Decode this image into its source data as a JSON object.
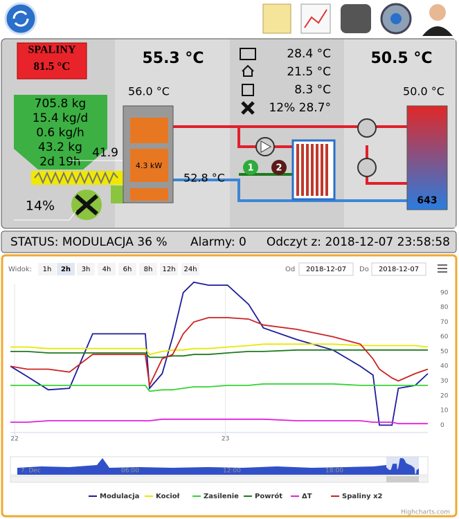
{
  "boiler": {
    "spaliny_label": "SPALINY",
    "spaliny_value": "81.5 °C",
    "fuel": [
      "705.8 kg",
      "15.4 kg/d",
      "0.6 kg/h",
      "43.2 kg",
      "2d 19h"
    ],
    "feeder": "41.9",
    "fan": "14%",
    "boiler_temp": "55.3 °C",
    "top_temp": "56.0 °C",
    "power": "4.3 kW",
    "return_temp": "52.8 °C"
  },
  "mixer": {
    "readings": [
      "28.4 °C",
      "21.5 °C",
      "8.3 °C",
      "12% 28.7°"
    ],
    "pumps": [
      "1",
      "2"
    ]
  },
  "tank": {
    "temp": "50.5 °C",
    "top": "50.0 °C",
    "bottom": "643"
  },
  "status": {
    "status": "STATUS: MODULACJA 36 %",
    "alarms": "Alarmy: 0",
    "read": "Odczyt z: 2018-12-07 23:58:58"
  },
  "controls": {
    "view_label": "Widok:",
    "ranges": [
      "1h",
      "2h",
      "3h",
      "4h",
      "6h",
      "8h",
      "12h",
      "24h"
    ],
    "from_label": "Od",
    "from": "2018-12-07",
    "to_label": "Do",
    "to": "2018-12-07"
  },
  "chart_data": {
    "type": "line",
    "x": [
      21.98,
      22.06,
      22.16,
      22.26,
      22.37,
      22.62,
      22.64,
      22.7,
      22.75,
      22.8,
      22.85,
      22.92,
      23.01,
      23.11,
      23.18,
      23.34,
      23.51,
      23.64,
      23.7,
      23.73,
      23.79,
      23.82,
      23.9,
      23.96
    ],
    "xlim": [
      21.98,
      23.96
    ],
    "xticks": [
      22,
      23
    ],
    "ylim": [
      -5,
      96
    ],
    "yticks": [
      0,
      10,
      20,
      30,
      40,
      50,
      60,
      70,
      80,
      90
    ],
    "grid": true,
    "series": [
      {
        "name": "Modulacja",
        "color": "#1c1c9c",
        "values": [
          40,
          33,
          24,
          25,
          62,
          62,
          25,
          35,
          60,
          90,
          97,
          95,
          95,
          82,
          66,
          58,
          51,
          40,
          34,
          0,
          0,
          25,
          27,
          35
        ]
      },
      {
        "name": "Kocioł",
        "color": "#e8e800",
        "values": [
          53,
          53,
          52,
          52,
          52,
          52,
          48,
          50,
          51,
          51,
          52,
          52,
          53,
          54,
          55,
          55,
          55,
          54,
          54,
          54,
          54,
          54,
          54,
          53
        ]
      },
      {
        "name": "Zasilenie",
        "color": "#33d433",
        "values": [
          27,
          27,
          27,
          27,
          27,
          27,
          23,
          24,
          24,
          25,
          26,
          26,
          27,
          27,
          28,
          28,
          28,
          27,
          27,
          27,
          27,
          27,
          27,
          27
        ]
      },
      {
        "name": "Powrót",
        "color": "#1e7a1e",
        "values": [
          50,
          50,
          49,
          49,
          49,
          49,
          46,
          46,
          47,
          47,
          48,
          48,
          49,
          50,
          50,
          51,
          51,
          51,
          51,
          51,
          51,
          51,
          51,
          51
        ]
      },
      {
        "name": "ΔT",
        "color": "#e020e0",
        "values": [
          2,
          2,
          3,
          3,
          3,
          3,
          3,
          4,
          4,
          4,
          4,
          4,
          4,
          4,
          4,
          3,
          3,
          3,
          2,
          2,
          2,
          1,
          1,
          1
        ]
      },
      {
        "name": "Spaliny x2",
        "color": "#cc2222",
        "values": [
          40,
          38,
          38,
          36,
          48,
          48,
          27,
          45,
          48,
          62,
          70,
          73,
          73,
          72,
          68,
          65,
          60,
          55,
          45,
          38,
          32,
          30,
          35,
          38
        ]
      }
    ]
  },
  "navigator": {
    "labels": [
      "7. Dec",
      "06:00",
      "12:00",
      "18:00"
    ]
  },
  "credit": "Highcharts.com"
}
